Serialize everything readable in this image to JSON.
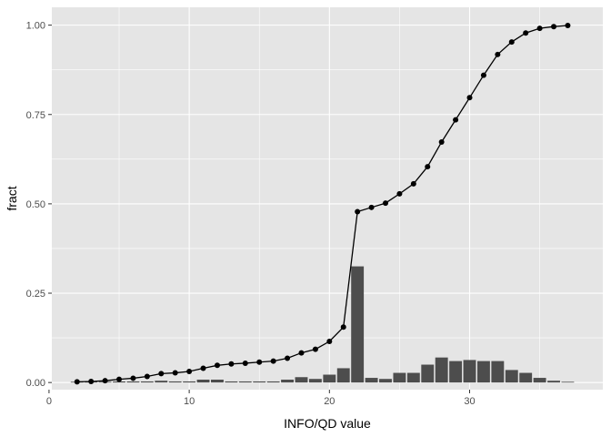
{
  "chart_data": {
    "type": "bar",
    "title": "",
    "xlabel": "INFO/QD value",
    "ylabel": "fract",
    "xlim": [
      0.2,
      39.5
    ],
    "ylim": [
      -0.02,
      1.05
    ],
    "x_ticks": [
      0,
      10,
      20,
      30
    ],
    "x_tick_labels": [
      "0",
      "10",
      "20",
      "30"
    ],
    "y_ticks": [
      0,
      0.25,
      0.5,
      0.75,
      1.0
    ],
    "y_tick_labels": [
      "0.00",
      "0.25",
      "0.50",
      "0.75",
      "1.00"
    ],
    "grid": true,
    "series": [
      {
        "type": "bar",
        "x": [
          2,
          3,
          4,
          5,
          6,
          7,
          8,
          9,
          10,
          11,
          12,
          13,
          14,
          15,
          16,
          17,
          18,
          19,
          20,
          21,
          22,
          23,
          24,
          25,
          26,
          27,
          28,
          29,
          30,
          31,
          32,
          33,
          34,
          35,
          36,
          37
        ],
        "values": [
          0.002,
          0.002,
          0.002,
          0.003,
          0.003,
          0.003,
          0.005,
          0.003,
          0.003,
          0.008,
          0.008,
          0.003,
          0.003,
          0.003,
          0.003,
          0.008,
          0.015,
          0.01,
          0.022,
          0.04,
          0.325,
          0.013,
          0.01,
          0.027,
          0.027,
          0.05,
          0.07,
          0.06,
          0.063,
          0.06,
          0.06,
          0.035,
          0.027,
          0.013,
          0.005,
          0.002
        ]
      },
      {
        "type": "line",
        "x": [
          2,
          3,
          4,
          5,
          6,
          7,
          8,
          9,
          10,
          11,
          12,
          13,
          14,
          15,
          16,
          17,
          18,
          19,
          20,
          21,
          22,
          23,
          24,
          25,
          26,
          27,
          28,
          29,
          30,
          31,
          32,
          33,
          34,
          35,
          36,
          37
        ],
        "values": [
          0.002,
          0.003,
          0.005,
          0.009,
          0.012,
          0.017,
          0.025,
          0.027,
          0.031,
          0.04,
          0.048,
          0.052,
          0.054,
          0.057,
          0.06,
          0.068,
          0.083,
          0.093,
          0.115,
          0.155,
          0.478,
          0.49,
          0.502,
          0.528,
          0.556,
          0.604,
          0.673,
          0.735,
          0.797,
          0.86,
          0.918,
          0.953,
          0.978,
          0.991,
          0.996,
          0.999
        ]
      }
    ],
    "colors": {
      "panel_background": "#e5e5e5",
      "grid": "#ffffff",
      "bar_fill": "#4d4d4d",
      "line": "#000000",
      "tick_label": "#4d4d4d",
      "axis_title": "#000000"
    }
  }
}
